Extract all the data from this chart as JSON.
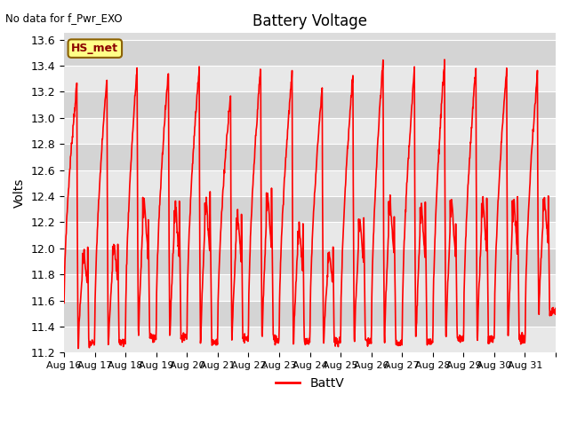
{
  "title": "Battery Voltage",
  "ylabel": "Volts",
  "ylim": [
    11.2,
    13.65
  ],
  "bg_color": "#dcdcdc",
  "line_color": "#ff0000",
  "line_width": 1.2,
  "legend_label": "BattV",
  "no_data_text": "No data for f_Pwr_EXO",
  "hs_met_label": "HS_met",
  "x_tick_labels": [
    "Aug 16",
    "Aug 17",
    "Aug 18",
    "Aug 19",
    "Aug 20",
    "Aug 21",
    "Aug 22",
    "Aug 23",
    "Aug 24",
    "Aug 25",
    "Aug 26",
    "Aug 27",
    "Aug 28",
    "Aug 29",
    "Aug 30",
    "Aug 31"
  ],
  "yticks": [
    11.2,
    11.4,
    11.6,
    11.8,
    12.0,
    12.2,
    12.4,
    12.6,
    12.8,
    13.0,
    13.2,
    13.4,
    13.6
  ],
  "figsize": [
    6.4,
    4.8
  ],
  "dpi": 100
}
